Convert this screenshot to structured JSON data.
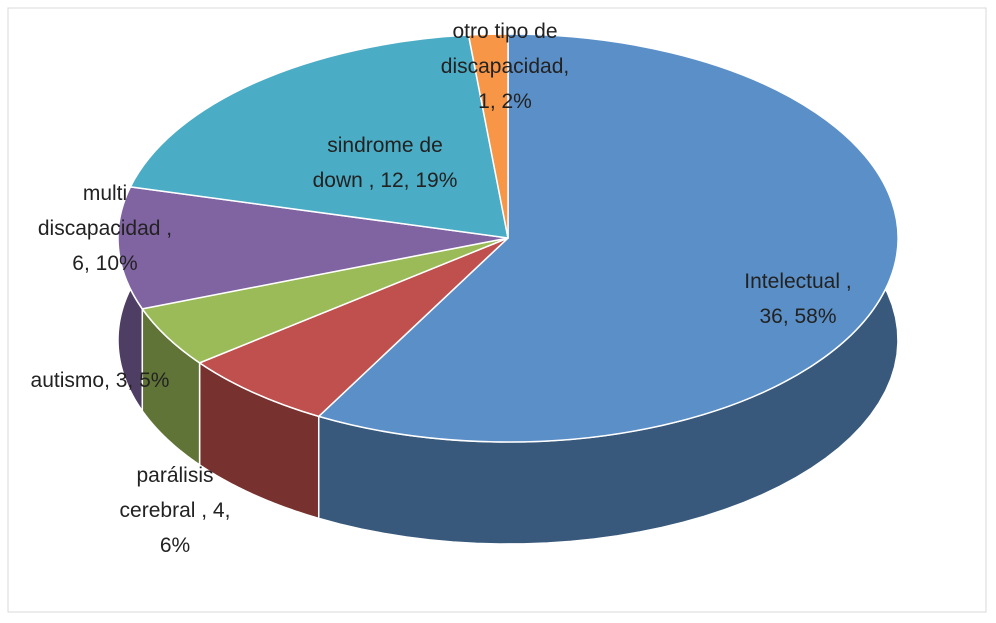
{
  "chart_data": {
    "type": "pie3d",
    "values": [
      36,
      4,
      3,
      6,
      12,
      1
    ],
    "labels": [
      [
        "Intelectual ,",
        "36, 58%"
      ],
      [
        "parálisis",
        "cerebral  , 4,",
        "6%"
      ],
      [
        "autismo, 3, 5%"
      ],
      [
        "multi",
        "discapacidad ,",
        "6, 10%"
      ],
      [
        "sindrome de",
        "down , 12, 19%"
      ],
      [
        "otro tipo de",
        "discapacidad,",
        "1, 2%"
      ]
    ],
    "colors": [
      "#5b8fc7",
      "#c0504d",
      "#9bbb59",
      "#8064a2",
      "#4bacc6",
      "#f79646"
    ]
  }
}
